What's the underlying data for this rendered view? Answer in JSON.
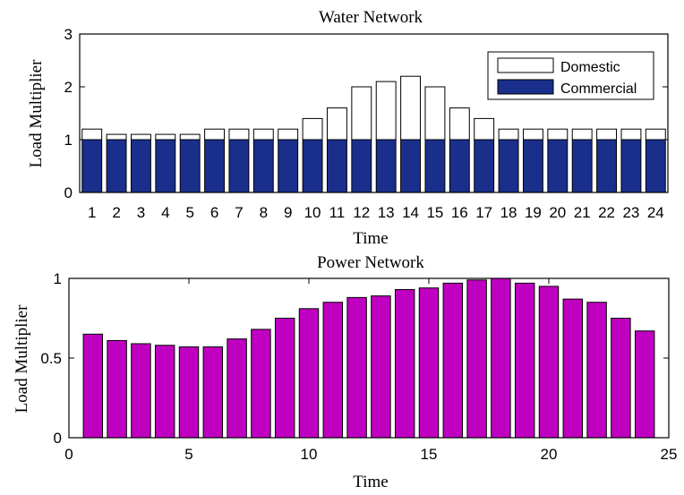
{
  "chart_data": [
    {
      "type": "bar",
      "stacked": true,
      "title": "Water Network",
      "xlabel": "Time",
      "ylabel": "Load Multiplier",
      "ylim": [
        0,
        3
      ],
      "yticks": [
        "0",
        "1",
        "2",
        "3"
      ],
      "categories": [
        "1",
        "2",
        "3",
        "4",
        "5",
        "6",
        "7",
        "8",
        "9",
        "10",
        "11",
        "12",
        "13",
        "14",
        "15",
        "16",
        "17",
        "18",
        "19",
        "20",
        "21",
        "22",
        "23",
        "24"
      ],
      "series": [
        {
          "name": "Commercial",
          "color": "#1a2f8c",
          "values": [
            1,
            1,
            1,
            1,
            1,
            1,
            1,
            1,
            1,
            1,
            1,
            1,
            1,
            1,
            1,
            1,
            1,
            1,
            1,
            1,
            1,
            1,
            1,
            1
          ]
        },
        {
          "name": "Domestic",
          "color": "#ffffff",
          "values": [
            0.2,
            0.1,
            0.1,
            0.1,
            0.1,
            0.2,
            0.2,
            0.2,
            0.2,
            0.4,
            0.6,
            1.0,
            1.1,
            1.2,
            1.0,
            0.6,
            0.4,
            0.2,
            0.2,
            0.2,
            0.2,
            0.2,
            0.2,
            0.2
          ]
        }
      ],
      "legend": {
        "position": "top-right",
        "entries": [
          "Domestic",
          "Commercial"
        ]
      },
      "grid": false
    },
    {
      "type": "bar",
      "title": "Power Network",
      "xlabel": "Time",
      "ylabel": "Load Multiplier",
      "xlim": [
        0,
        25
      ],
      "ylim": [
        0,
        1
      ],
      "xticks": [
        "0",
        "5",
        "10",
        "15",
        "20",
        "25"
      ],
      "yticks": [
        "0",
        "0.5",
        "1"
      ],
      "series": [
        {
          "color": "#c000c0",
          "x": [
            1,
            2,
            3,
            4,
            5,
            6,
            7,
            8,
            9,
            10,
            11,
            12,
            13,
            14,
            15,
            16,
            17,
            18,
            19,
            20,
            21,
            22,
            23,
            24
          ],
          "values": [
            0.65,
            0.61,
            0.59,
            0.58,
            0.57,
            0.57,
            0.62,
            0.68,
            0.75,
            0.81,
            0.85,
            0.88,
            0.89,
            0.93,
            0.94,
            0.97,
            0.99,
            1.0,
            0.97,
            0.95,
            0.87,
            0.85,
            0.75,
            0.67
          ]
        }
      ],
      "grid": false
    }
  ]
}
